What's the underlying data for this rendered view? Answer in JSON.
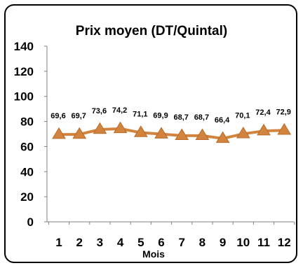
{
  "chart_data": {
    "type": "line",
    "title": "Prix moyen (DT/Quintal)",
    "xlabel": "Mois",
    "ylabel": "",
    "ylim": [
      0,
      140
    ],
    "yticks": [
      "0",
      "20",
      "40",
      "60",
      "80",
      "100",
      "120",
      "140"
    ],
    "categories": [
      "1",
      "2",
      "3",
      "4",
      "5",
      "6",
      "7",
      "8",
      "9",
      "10",
      "11",
      "12"
    ],
    "values": [
      69.6,
      69.7,
      73.6,
      74.2,
      71.1,
      69.9,
      68.7,
      68.7,
      66.4,
      70.1,
      72.4,
      72.9
    ],
    "value_labels": [
      "69,6",
      "69,7",
      "73,6",
      "74,2",
      "71,1",
      "69,9",
      "68,7",
      "68,7",
      "66,4",
      "70,1",
      "72,4",
      "72,9"
    ],
    "grid": false,
    "legend": "none",
    "marker": "triangle",
    "color": "#D2843E"
  }
}
